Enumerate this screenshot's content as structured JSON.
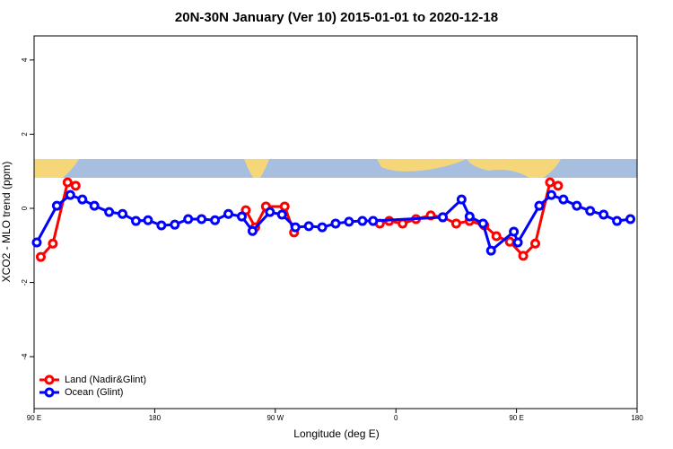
{
  "chart_data": {
    "type": "line",
    "title": "20N-30N January (Ver 10)   2015-01-01 to 2020-12-18",
    "x_label": "Longitude (deg E)",
    "y_label": "XCO2 - MLO trend (ppm)",
    "xlim": [
      90,
      540
    ],
    "xticks": [
      {
        "value": 90,
        "label": "90 E"
      },
      180,
      {
        "value": 270,
        "label": "90 W"
      },
      {
        "value": 360,
        "label": "0"
      },
      {
        "value": 450,
        "label": "90 E"
      },
      {
        "value": 540,
        "label": "180"
      }
    ],
    "ylim": [
      -5.4,
      4.65
    ],
    "yticks": [
      -4,
      -2,
      0,
      2,
      4
    ],
    "legend": "bottom-left",
    "series": [
      {
        "name": "Land (Nadir&Glint)",
        "color": "#ff0000",
        "x": [
          95,
          104,
          115,
          121,
          null,
          248,
          255,
          263,
          277,
          284,
          null,
          348,
          355,
          365,
          375,
          386,
          395,
          405,
          415,
          426,
          435,
          445,
          455,
          464,
          475,
          481
        ],
        "values": [
          -1.31,
          -0.95,
          0.7,
          0.61,
          null,
          -0.05,
          -0.51,
          0.05,
          0.05,
          -0.65,
          null,
          -0.41,
          -0.34,
          -0.41,
          -0.29,
          -0.19,
          -0.24,
          -0.41,
          -0.34,
          -0.46,
          -0.75,
          -0.9,
          -1.28,
          -0.95,
          0.7,
          0.61
        ]
      },
      {
        "name": "Ocean (Glint)",
        "color": "#0000ff",
        "x": [
          92,
          107,
          117,
          126,
          135,
          146,
          156,
          166,
          175,
          185,
          195,
          205,
          215,
          225,
          235,
          245,
          253,
          266,
          275,
          285,
          295,
          305,
          315,
          325,
          335,
          343,
          395,
          409,
          415,
          425,
          431,
          448,
          451,
          467,
          476,
          485,
          495,
          505,
          515,
          525,
          535
        ],
        "values": [
          -0.92,
          0.07,
          0.36,
          0.24,
          0.07,
          -0.1,
          -0.15,
          -0.34,
          -0.32,
          -0.46,
          -0.44,
          -0.29,
          -0.29,
          -0.32,
          -0.15,
          -0.22,
          -0.61,
          -0.1,
          -0.17,
          -0.51,
          -0.48,
          -0.51,
          -0.41,
          -0.36,
          -0.34,
          -0.34,
          -0.24,
          0.24,
          -0.22,
          -0.41,
          -1.14,
          -0.63,
          -0.92,
          0.07,
          0.36,
          0.24,
          0.07,
          -0.07,
          -0.17,
          -0.34,
          -0.29
        ]
      }
    ]
  }
}
